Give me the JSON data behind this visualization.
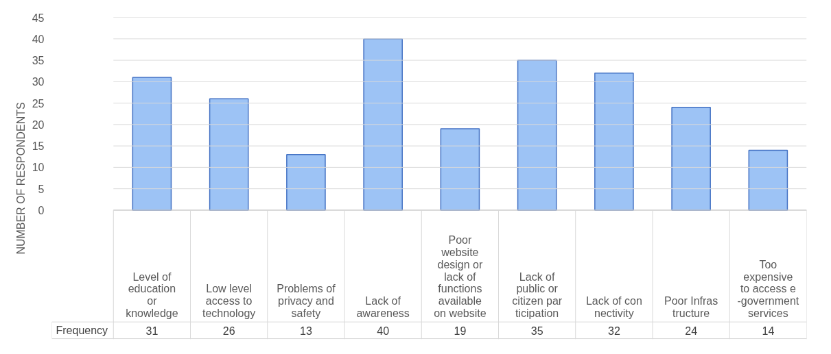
{
  "chart_data": {
    "type": "bar",
    "ylabel": "NUMBER OF RESPONDENTS",
    "categories": [
      "Level of education or knowledge",
      "Low level access to technology",
      "Problems of privacy and safety",
      "Lack of awareness",
      "Poor website design or lack of functions available on website",
      "Lack of public or citizen participation",
      "Lack of connectivity",
      "Poor Infrastructure",
      "Too expensive to access e-government services"
    ],
    "series": [
      {
        "name": "Frequency",
        "color": "#9dc3f5",
        "values": [
          31,
          26,
          13,
          40,
          19,
          35,
          32,
          24,
          14
        ]
      }
    ],
    "ylim": [
      0,
      45
    ],
    "yticks": [
      0,
      5,
      10,
      15,
      20,
      25,
      30,
      35,
      40,
      45
    ],
    "grid": "y",
    "legend": false,
    "data_labels": true
  }
}
